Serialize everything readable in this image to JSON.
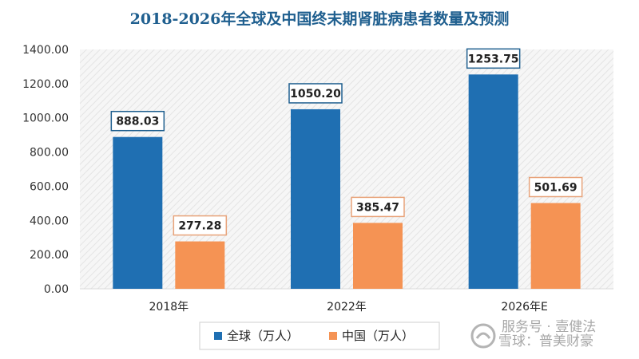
{
  "chart_data": {
    "type": "bar",
    "title": "2018-2026年全球及中国终末期肾脏病患者数量及预测",
    "categories": [
      "2018年",
      "2022年",
      "2026年E"
    ],
    "series": [
      {
        "name": "全球（万人）",
        "color": "#1f6fb2",
        "label_border": "#1f5f8f",
        "values": [
          888.03,
          1050.2,
          1253.75
        ],
        "labels": [
          "888.03",
          "1050.20",
          "1253.75"
        ]
      },
      {
        "name": "中国（万人）",
        "color": "#f59354",
        "label_border": "#e8a37a",
        "values": [
          277.28,
          385.47,
          501.69
        ],
        "labels": [
          "277.28",
          "385.47",
          "501.69"
        ]
      }
    ],
    "ylim": [
      0,
      1400
    ],
    "yticks": [
      "0.00",
      "200.00",
      "400.00",
      "600.00",
      "800.00",
      "1000.00",
      "1200.00",
      "1400.00"
    ],
    "xlabel": "",
    "ylabel": "",
    "grid": false,
    "legend": "bottom-center",
    "title_color": "#1f5f8f"
  },
  "watermark": {
    "line1": "服务号 · 壹健法",
    "line2": "雪球：普美财豪"
  }
}
